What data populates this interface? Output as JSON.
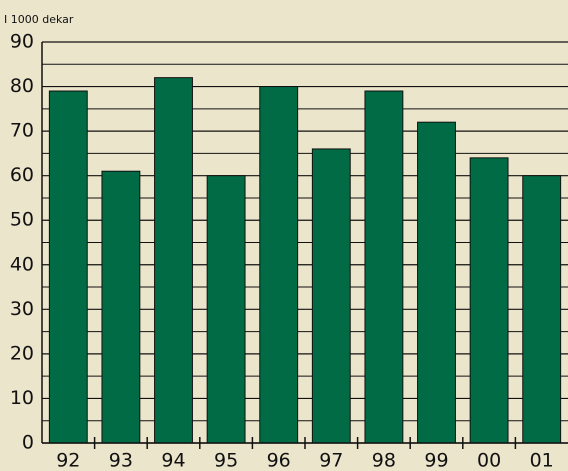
{
  "chart_data": {
    "type": "bar",
    "title": "I 1000 dekar",
    "categories": [
      "92",
      "93",
      "94",
      "95",
      "96",
      "97",
      "98",
      "99",
      "00",
      "01"
    ],
    "values": [
      79,
      61,
      82,
      60,
      80,
      66,
      79,
      72,
      64,
      60
    ],
    "color": "#006b45",
    "ylim": [
      0,
      90
    ],
    "yticks": [
      0,
      10,
      20,
      30,
      40,
      50,
      60,
      70,
      80,
      90
    ],
    "minor_yticks": [
      5,
      15,
      25,
      35,
      45,
      55,
      65,
      75,
      85
    ],
    "grid": true
  }
}
